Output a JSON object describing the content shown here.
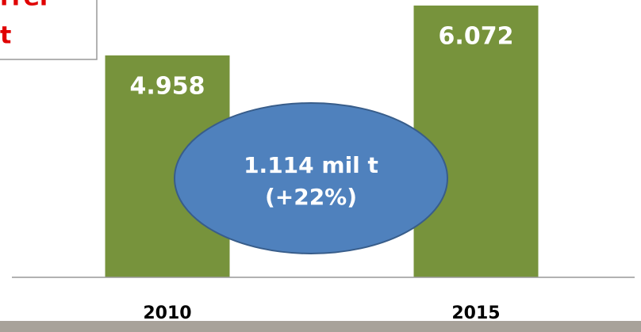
{
  "chart_data": {
    "type": "bar",
    "categories": [
      "2010",
      "2015"
    ],
    "values": [
      4.958,
      6.072
    ],
    "value_labels": [
      "4.958",
      "6.072"
    ],
    "color": "#77933c",
    "annotation": [
      "1.114 mil t",
      "(+22%)"
    ],
    "note": [
      "rrel",
      "t"
    ]
  }
}
